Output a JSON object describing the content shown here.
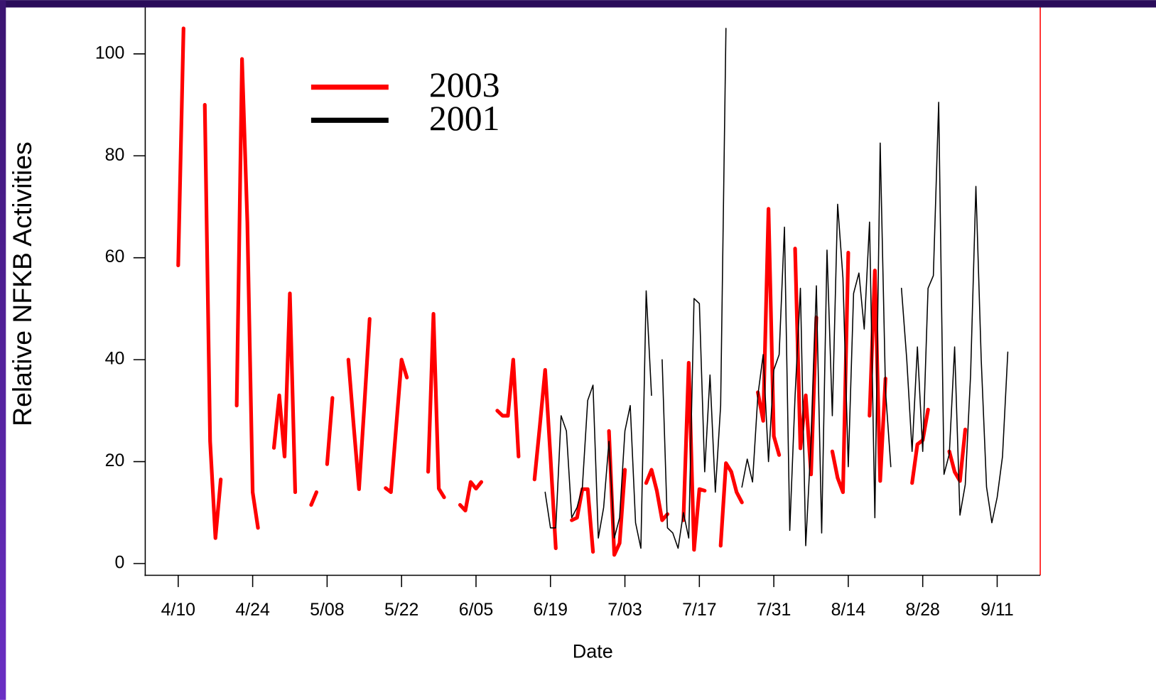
{
  "chart_data": {
    "type": "line",
    "xlabel": "Date",
    "ylabel": "Relative NFKB Activities",
    "x": [
      0,
      1,
      2,
      3,
      4,
      5,
      6,
      7,
      8,
      9,
      10,
      11,
      12,
      13,
      14,
      15,
      16,
      17,
      18,
      19,
      20,
      21,
      22,
      23,
      24,
      25,
      26,
      27,
      28,
      29,
      30,
      31,
      32,
      33,
      34,
      35,
      36,
      37,
      38,
      39,
      40,
      41,
      42,
      43,
      44,
      45,
      46,
      47,
      48,
      49,
      50,
      51,
      52,
      53,
      54,
      55,
      56,
      57,
      58,
      59,
      60,
      61,
      62,
      63,
      64,
      65,
      66,
      67,
      68,
      69,
      70,
      71,
      72,
      73,
      74,
      75,
      76,
      77,
      78,
      79,
      80,
      81,
      82,
      83,
      84,
      85,
      86,
      87,
      88,
      89,
      90,
      91,
      92,
      93,
      94,
      95,
      96,
      97,
      98,
      99,
      100,
      101,
      102,
      103,
      104,
      105,
      106,
      107,
      108,
      109,
      110,
      111,
      112,
      113,
      114,
      115,
      116,
      117,
      118,
      119,
      120,
      121,
      122,
      123,
      124,
      125,
      126,
      127,
      128,
      129,
      130,
      131,
      132,
      133,
      134,
      135,
      136,
      137,
      138,
      139,
      140,
      141,
      142,
      143,
      144,
      145,
      146,
      147,
      148,
      149,
      150,
      151,
      152,
      153,
      154,
      155,
      156
    ],
    "series": [
      {
        "name": "2003",
        "color": "#ff0000",
        "line_width": 5,
        "values": [
          58.5,
          105,
          null,
          null,
          null,
          90,
          24,
          5,
          16.5,
          null,
          null,
          31,
          99,
          67,
          14,
          7,
          null,
          null,
          22.7,
          33,
          21,
          53,
          14,
          null,
          null,
          11.5,
          14,
          null,
          19.5,
          32.5,
          null,
          null,
          40,
          27,
          14.6,
          31,
          48,
          null,
          null,
          14.8,
          14,
          27,
          40,
          36.5,
          null,
          null,
          null,
          18,
          49,
          14.7,
          13,
          null,
          null,
          11.5,
          10.4,
          16,
          14.7,
          16,
          null,
          null,
          30,
          29,
          29,
          40,
          21,
          null,
          null,
          16.5,
          27,
          38,
          21,
          3,
          null,
          null,
          8.5,
          9,
          14.6,
          14.6,
          2.3,
          null,
          null,
          26,
          1.7,
          4,
          18.4,
          null,
          null,
          null,
          15.8,
          18.4,
          14.3,
          8.5,
          9.7,
          null,
          null,
          8.5,
          39.4,
          2.7,
          14.6,
          14.3,
          null,
          null,
          3.5,
          19.7,
          18,
          14,
          12,
          null,
          null,
          33.6,
          28,
          69.6,
          25,
          21.3,
          null,
          null,
          61.8,
          22.6,
          33,
          17.5,
          48.3,
          null,
          null,
          22,
          16.8,
          14,
          61,
          null,
          null,
          null,
          29,
          57.5,
          16.2,
          36.3,
          null,
          null,
          null,
          null,
          15.8,
          23.4,
          24.2,
          30.2,
          null,
          null,
          null,
          22,
          18,
          16.2,
          26.3,
          null,
          null,
          null,
          null,
          null,
          null,
          null,
          null
        ]
      },
      {
        "name": "2001",
        "color": "#000000",
        "line_width": 1.5,
        "values": [
          null,
          null,
          null,
          null,
          null,
          null,
          null,
          null,
          null,
          null,
          null,
          null,
          null,
          null,
          null,
          null,
          null,
          null,
          null,
          null,
          null,
          null,
          null,
          null,
          null,
          null,
          null,
          null,
          null,
          null,
          null,
          null,
          null,
          null,
          null,
          null,
          null,
          null,
          null,
          null,
          null,
          null,
          null,
          null,
          null,
          null,
          null,
          null,
          null,
          null,
          null,
          null,
          null,
          null,
          null,
          null,
          null,
          null,
          null,
          null,
          null,
          null,
          null,
          null,
          null,
          null,
          null,
          null,
          null,
          14,
          7,
          7,
          29,
          26,
          9,
          11,
          15,
          32,
          35,
          5,
          11,
          24,
          5,
          9,
          26,
          31,
          8,
          3,
          53.5,
          33,
          null,
          40,
          7,
          6,
          3,
          10,
          5,
          52,
          51,
          18,
          37,
          14,
          31,
          105,
          null,
          null,
          15,
          20.5,
          16,
          33,
          41,
          20,
          38,
          41,
          66,
          6.5,
          33,
          54,
          3.5,
          24,
          54.5,
          6,
          61.5,
          29,
          70.5,
          56,
          19,
          53,
          57,
          46,
          67,
          9,
          82.5,
          34,
          19,
          null,
          54,
          40,
          22,
          42.5,
          22,
          54,
          56.5,
          90.5,
          17.5,
          21.5,
          42.5,
          9.5,
          15.5,
          37,
          74,
          40,
          15,
          8,
          13,
          21,
          41.5
        ]
      }
    ],
    "xlim": [
      -6.2,
      162.1
    ],
    "ylim": [
      -2.3,
      109.1
    ],
    "xticks": [
      {
        "value": 0,
        "label": "4/10"
      },
      {
        "value": 14,
        "label": "4/24"
      },
      {
        "value": 28,
        "label": "5/08"
      },
      {
        "value": 42,
        "label": "5/22"
      },
      {
        "value": 56,
        "label": "6/05"
      },
      {
        "value": 70,
        "label": "6/19"
      },
      {
        "value": 84,
        "label": "7/03"
      },
      {
        "value": 98,
        "label": "7/17"
      },
      {
        "value": 112,
        "label": "7/31"
      },
      {
        "value": 126,
        "label": "8/14"
      },
      {
        "value": 140,
        "label": "8/28"
      },
      {
        "value": 154,
        "label": "9/11"
      }
    ],
    "yticks": [
      0,
      20,
      40,
      60,
      80,
      100
    ],
    "legend": "upper left"
  }
}
